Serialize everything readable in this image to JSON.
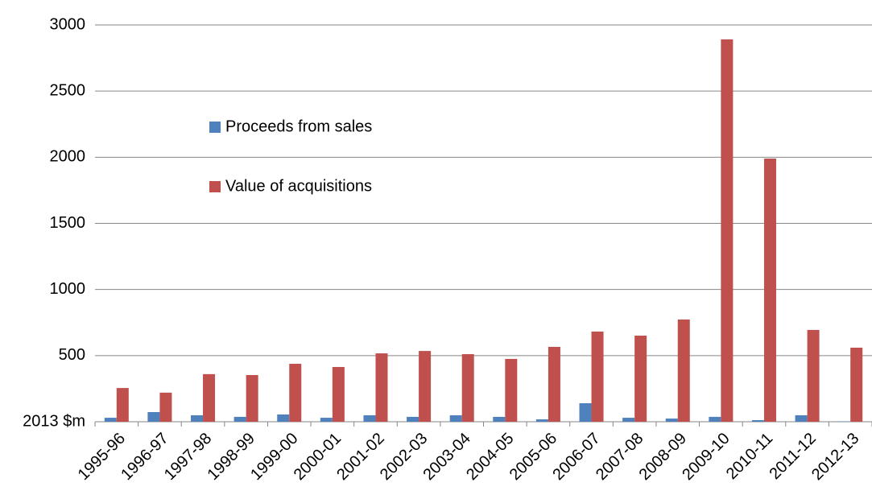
{
  "chart_data": {
    "type": "bar",
    "categories": [
      "1995-96",
      "1996-97",
      "1997-98",
      "1998-99",
      "1999-00",
      "2000-01",
      "2001-02",
      "2002-03",
      "2003-04",
      "2004-05",
      "2005-06",
      "2006-07",
      "2007-08",
      "2008-09",
      "2009-10",
      "2010-11",
      "2011-12",
      "2012-13"
    ],
    "series": [
      {
        "name": "Proceeds from sales",
        "color": "#4f81bd",
        "values": [
          30,
          73,
          49,
          37,
          55,
          30,
          49,
          37,
          49,
          37,
          18,
          140,
          30,
          24,
          37,
          12,
          49,
          3
        ]
      },
      {
        "name": "Value of acquisitions",
        "color": "#c0504d",
        "values": [
          255,
          220,
          360,
          353,
          438,
          414,
          517,
          535,
          511,
          475,
          566,
          682,
          651,
          773,
          2891,
          1990,
          694,
          560
        ]
      }
    ],
    "ylim": [
      0,
      3000
    ],
    "yticks": [
      {
        "value": 0,
        "label": "2013 $m"
      },
      500,
      1000,
      1500,
      2000,
      2500,
      3000
    ],
    "grid": true,
    "legend": "upper-left"
  }
}
